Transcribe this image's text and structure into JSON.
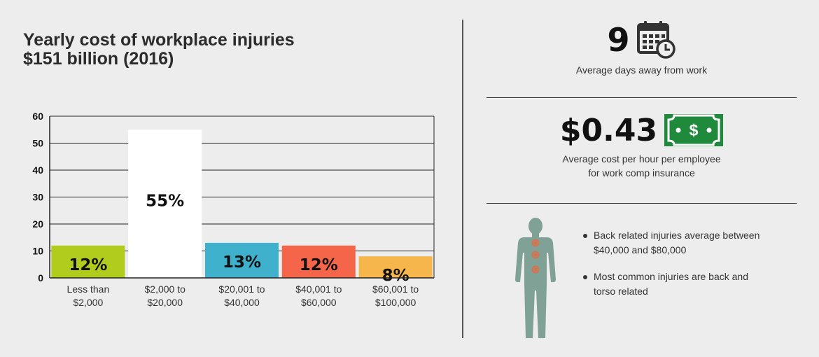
{
  "title": {
    "line1": "Yearly cost of workplace injuries",
    "line2": "$151 billion (2016)"
  },
  "chart_data": {
    "type": "bar",
    "categories": [
      [
        "Less than",
        "$2,000"
      ],
      [
        "$2,000 to",
        "$20,000"
      ],
      [
        "$20,001 to",
        "$40,000"
      ],
      [
        "$40,001 to",
        "$60,000"
      ],
      [
        "$60,001 to",
        "$100,000"
      ]
    ],
    "values": [
      12,
      55,
      13,
      12,
      8
    ],
    "data_labels": [
      "12%",
      "55%",
      "13%",
      "12%",
      "8%"
    ],
    "colors": [
      "#b2cc1e",
      "#ffffff",
      "#3fb1cd",
      "#f5654a",
      "#f7b64c"
    ],
    "yticks": [
      0,
      10,
      20,
      30,
      40,
      50,
      60
    ],
    "ylim": [
      0,
      60
    ],
    "grid": true,
    "title": "Yearly cost of workplace injuries $151 billion (2016)"
  },
  "stats": {
    "days": {
      "value": "9",
      "label": "Average days away from work",
      "icon": "calendar-clock-icon"
    },
    "cost": {
      "value": "$0.43",
      "label_line1": "Average cost per hour per employee",
      "label_line2": "for work comp insurance",
      "icon": "dollar-bill-icon",
      "bill_symbol": "$",
      "bill_color": "#1f8a3c"
    }
  },
  "injury_info": {
    "figure_icon": "human-body-icon",
    "figure_color": "#7fa196",
    "spot_color": "#d9724a",
    "bullets": [
      {
        "line1": "Back related injuries average between",
        "line2": "$40,000 and $80,000"
      },
      {
        "line1": "Most common injuries are back and",
        "line2": "torso related"
      }
    ]
  }
}
